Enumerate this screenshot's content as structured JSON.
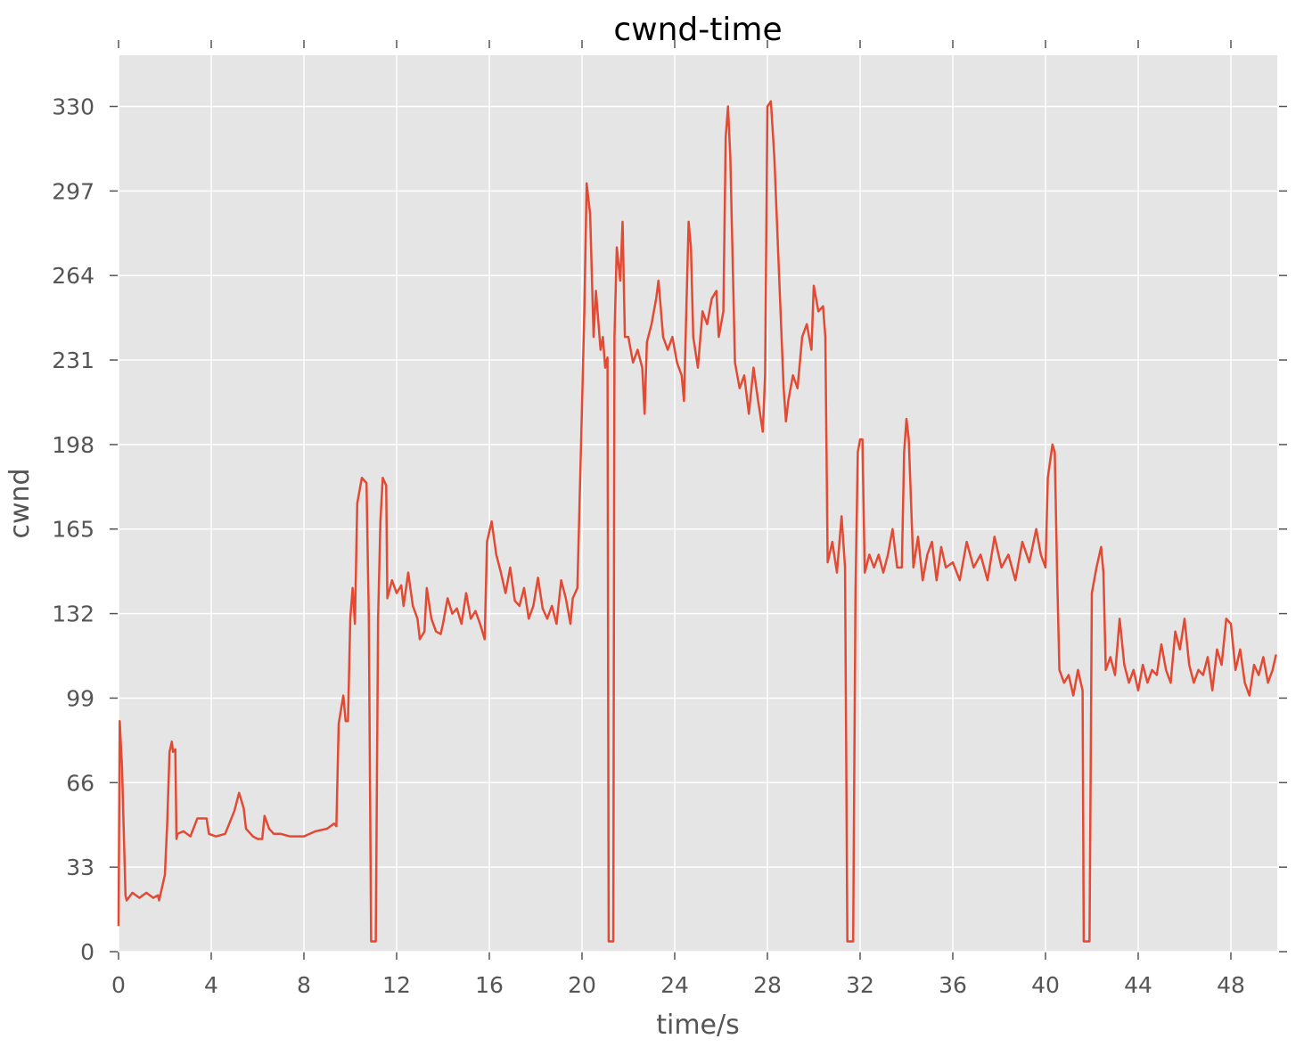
{
  "chart_data": {
    "type": "line",
    "title": "cwnd-time",
    "x_label": "time/s",
    "y_label": "cwnd",
    "xlim": [
      0,
      50
    ],
    "ylim": [
      0,
      350
    ],
    "xticks": [
      0,
      4,
      8,
      12,
      16,
      20,
      24,
      28,
      32,
      36,
      40,
      44,
      48
    ],
    "yticks": [
      0,
      33,
      66,
      99,
      132,
      165,
      198,
      231,
      264,
      297,
      330
    ],
    "grid": true,
    "series": [
      {
        "color": "#e24a33",
        "x": [
          0,
          0.05,
          0.15,
          0.3,
          0.35,
          0.6,
          0.9,
          1.2,
          1.5,
          1.7,
          1.75,
          2.0,
          2.1,
          2.2,
          2.3,
          2.35,
          2.45,
          2.5,
          2.55,
          2.8,
          3.1,
          3.4,
          3.8,
          3.9,
          4.2,
          4.6,
          5.0,
          5.2,
          5.4,
          5.5,
          5.8,
          6.0,
          6.2,
          6.3,
          6.5,
          6.7,
          7.0,
          7.4,
          8.0,
          8.5,
          9.0,
          9.3,
          9.4,
          9.5,
          9.7,
          9.8,
          9.9,
          10.0,
          10.1,
          10.2,
          10.3,
          10.5,
          10.7,
          10.8,
          10.9,
          11.1,
          11.2,
          11.3,
          11.4,
          11.55,
          11.6,
          11.8,
          12.0,
          12.2,
          12.3,
          12.5,
          12.7,
          12.9,
          13.0,
          13.2,
          13.3,
          13.5,
          13.7,
          13.9,
          14.0,
          14.2,
          14.4,
          14.6,
          14.8,
          15.0,
          15.2,
          15.4,
          15.6,
          15.8,
          15.9,
          16.1,
          16.3,
          16.5,
          16.7,
          16.9,
          17.1,
          17.3,
          17.5,
          17.7,
          17.9,
          18.1,
          18.3,
          18.5,
          18.7,
          18.9,
          19.1,
          19.3,
          19.5,
          19.6,
          19.8,
          19.95,
          20.1,
          20.2,
          20.35,
          20.5,
          20.6,
          20.8,
          20.9,
          21.0,
          21.1,
          21.15,
          21.35,
          21.4,
          21.5,
          21.65,
          21.75,
          21.85,
          22.0,
          22.2,
          22.4,
          22.6,
          22.7,
          22.8,
          23.0,
          23.2,
          23.3,
          23.5,
          23.7,
          23.9,
          24.1,
          24.3,
          24.4,
          24.6,
          24.7,
          24.8,
          25.0,
          25.2,
          25.4,
          25.6,
          25.8,
          25.9,
          26.1,
          26.2,
          26.3,
          26.4,
          26.5,
          26.6,
          26.8,
          27.0,
          27.2,
          27.4,
          27.6,
          27.8,
          27.9,
          28.0,
          28.15,
          28.3,
          28.5,
          28.7,
          28.8,
          28.9,
          29.1,
          29.3,
          29.5,
          29.7,
          29.9,
          30.0,
          30.2,
          30.4,
          30.5,
          30.6,
          30.8,
          31.0,
          31.2,
          31.35,
          31.45,
          31.7,
          31.8,
          31.9,
          32.0,
          32.1,
          32.2,
          32.4,
          32.6,
          32.8,
          33.0,
          33.2,
          33.4,
          33.6,
          33.8,
          33.9,
          34.0,
          34.1,
          34.2,
          34.3,
          34.5,
          34.7,
          34.9,
          35.1,
          35.3,
          35.5,
          35.7,
          36.0,
          36.3,
          36.6,
          36.9,
          37.2,
          37.5,
          37.8,
          38.1,
          38.4,
          38.7,
          39.0,
          39.3,
          39.6,
          39.8,
          40.0,
          40.1,
          40.3,
          40.4,
          40.5,
          40.6,
          40.8,
          41.0,
          41.2,
          41.4,
          41.6,
          41.65,
          41.9,
          42.0,
          42.2,
          42.4,
          42.5,
          42.6,
          42.8,
          43.0,
          43.2,
          43.4,
          43.6,
          43.8,
          44.0,
          44.2,
          44.4,
          44.6,
          44.8,
          45.0,
          45.2,
          45.4,
          45.6,
          45.8,
          46.0,
          46.2,
          46.4,
          46.6,
          46.8,
          47.0,
          47.2,
          47.4,
          47.6,
          47.8,
          48.0,
          48.2,
          48.4,
          48.6,
          48.8,
          49.0,
          49.2,
          49.4,
          49.6,
          49.8,
          49.95
        ],
        "values": [
          10,
          90,
          72,
          22,
          20,
          23,
          21,
          23,
          21,
          22,
          20,
          30,
          50,
          78,
          82,
          78,
          79,
          44,
          46,
          47,
          45,
          52,
          52,
          46,
          45,
          46,
          55,
          62,
          56,
          48,
          45,
          44,
          44,
          53,
          48,
          46,
          46,
          45,
          45,
          47,
          48,
          50,
          49,
          89,
          100,
          90,
          90,
          130,
          142,
          128,
          175,
          185,
          183,
          130,
          4,
          4,
          130,
          168,
          185,
          182,
          138,
          145,
          140,
          143,
          135,
          148,
          135,
          130,
          122,
          125,
          142,
          130,
          125,
          124,
          128,
          138,
          132,
          134,
          128,
          140,
          130,
          133,
          128,
          122,
          160,
          168,
          155,
          148,
          140,
          150,
          137,
          135,
          142,
          130,
          135,
          146,
          134,
          130,
          135,
          128,
          145,
          138,
          128,
          138,
          142,
          195,
          250,
          300,
          288,
          240,
          258,
          235,
          240,
          228,
          232,
          4,
          4,
          240,
          275,
          262,
          285,
          240,
          240,
          230,
          235,
          228,
          210,
          238,
          245,
          255,
          262,
          240,
          235,
          240,
          230,
          225,
          215,
          285,
          275,
          240,
          228,
          250,
          245,
          255,
          258,
          240,
          250,
          318,
          330,
          310,
          270,
          230,
          220,
          225,
          210,
          228,
          215,
          203,
          225,
          330,
          332,
          310,
          265,
          220,
          207,
          215,
          225,
          220,
          240,
          245,
          235,
          260,
          250,
          252,
          240,
          152,
          160,
          148,
          170,
          150,
          4,
          4,
          140,
          195,
          200,
          200,
          148,
          155,
          150,
          155,
          148,
          155,
          165,
          150,
          150,
          195,
          208,
          200,
          175,
          150,
          162,
          145,
          155,
          160,
          145,
          158,
          150,
          152,
          145,
          160,
          150,
          155,
          145,
          162,
          150,
          155,
          145,
          160,
          152,
          165,
          155,
          150,
          185,
          198,
          195,
          148,
          110,
          105,
          108,
          100,
          110,
          102,
          4,
          4,
          140,
          150,
          158,
          148,
          110,
          115,
          108,
          130,
          112,
          105,
          110,
          102,
          112,
          105,
          110,
          108,
          120,
          110,
          105,
          125,
          118,
          130,
          112,
          105,
          110,
          108,
          115,
          102,
          118,
          112,
          130,
          128,
          110,
          118,
          105,
          100,
          112,
          108,
          115,
          105,
          110,
          116
        ]
      }
    ]
  }
}
